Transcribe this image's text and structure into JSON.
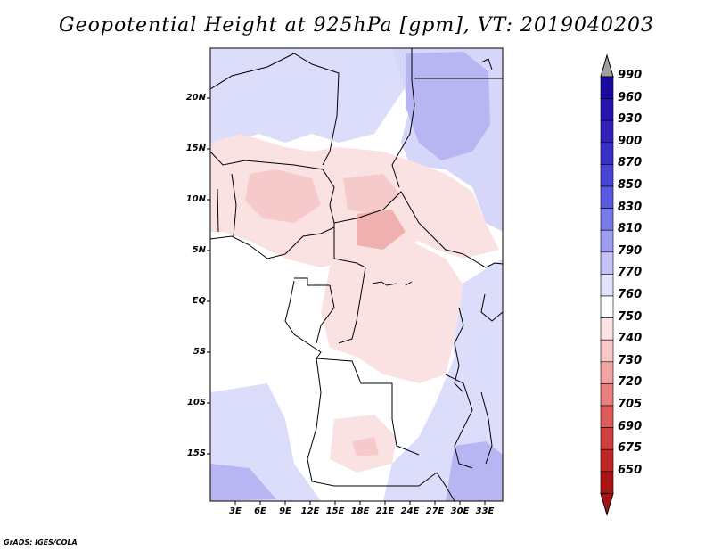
{
  "title": "Geopotential Height at 925hPa [gpm], VT: 2019040203",
  "credit": "GrADS: IGES/COLA",
  "map": {
    "latitude_labels": [
      "20N",
      "15N",
      "10N",
      "5N",
      "EQ",
      "5S",
      "10S",
      "15S"
    ],
    "longitude_labels": [
      "3E",
      "6E",
      "9E",
      "12E",
      "15E",
      "18E",
      "21E",
      "24E",
      "27E",
      "30E",
      "33E"
    ],
    "region": "Central Africa",
    "extent": {
      "lon_min": 0,
      "lon_max": 35,
      "lat_min": -20,
      "lat_max": 25
    }
  },
  "colorbar": {
    "levels": [
      "990",
      "960",
      "930",
      "900",
      "870",
      "850",
      "830",
      "810",
      "790",
      "770",
      "760",
      "750",
      "740",
      "730",
      "720",
      "705",
      "690",
      "675",
      "650"
    ],
    "colors": [
      "#1a0aa0",
      "#2415b0",
      "#2f22bd",
      "#3a30c8",
      "#4a44d4",
      "#5c5ae0",
      "#7a7ae8",
      "#9e9ef0",
      "#c4c4f7",
      "#e2e2fc",
      "#ffffff",
      "#fde4e4",
      "#f9c8c8",
      "#f1a4a4",
      "#e88080",
      "#de5c5c",
      "#d04040",
      "#c02828",
      "#a81414"
    ]
  }
}
